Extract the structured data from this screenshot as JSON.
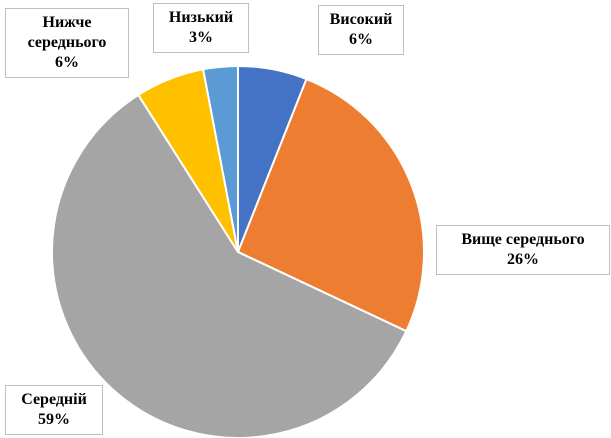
{
  "chart_data": {
    "type": "pie",
    "categories": [
      "Високий",
      "Вище середнього",
      "Середній",
      "Нижче середнього",
      "Низький"
    ],
    "values": [
      6,
      26,
      59,
      6,
      3
    ],
    "value_labels": [
      "6%",
      "26%",
      "59%",
      "6%",
      "3%"
    ],
    "colors": [
      "#4472c4",
      "#ed7d31",
      "#a5a5a5",
      "#ffc000",
      "#5b9bd5"
    ],
    "start_angle": 0,
    "direction": "clockwise"
  }
}
